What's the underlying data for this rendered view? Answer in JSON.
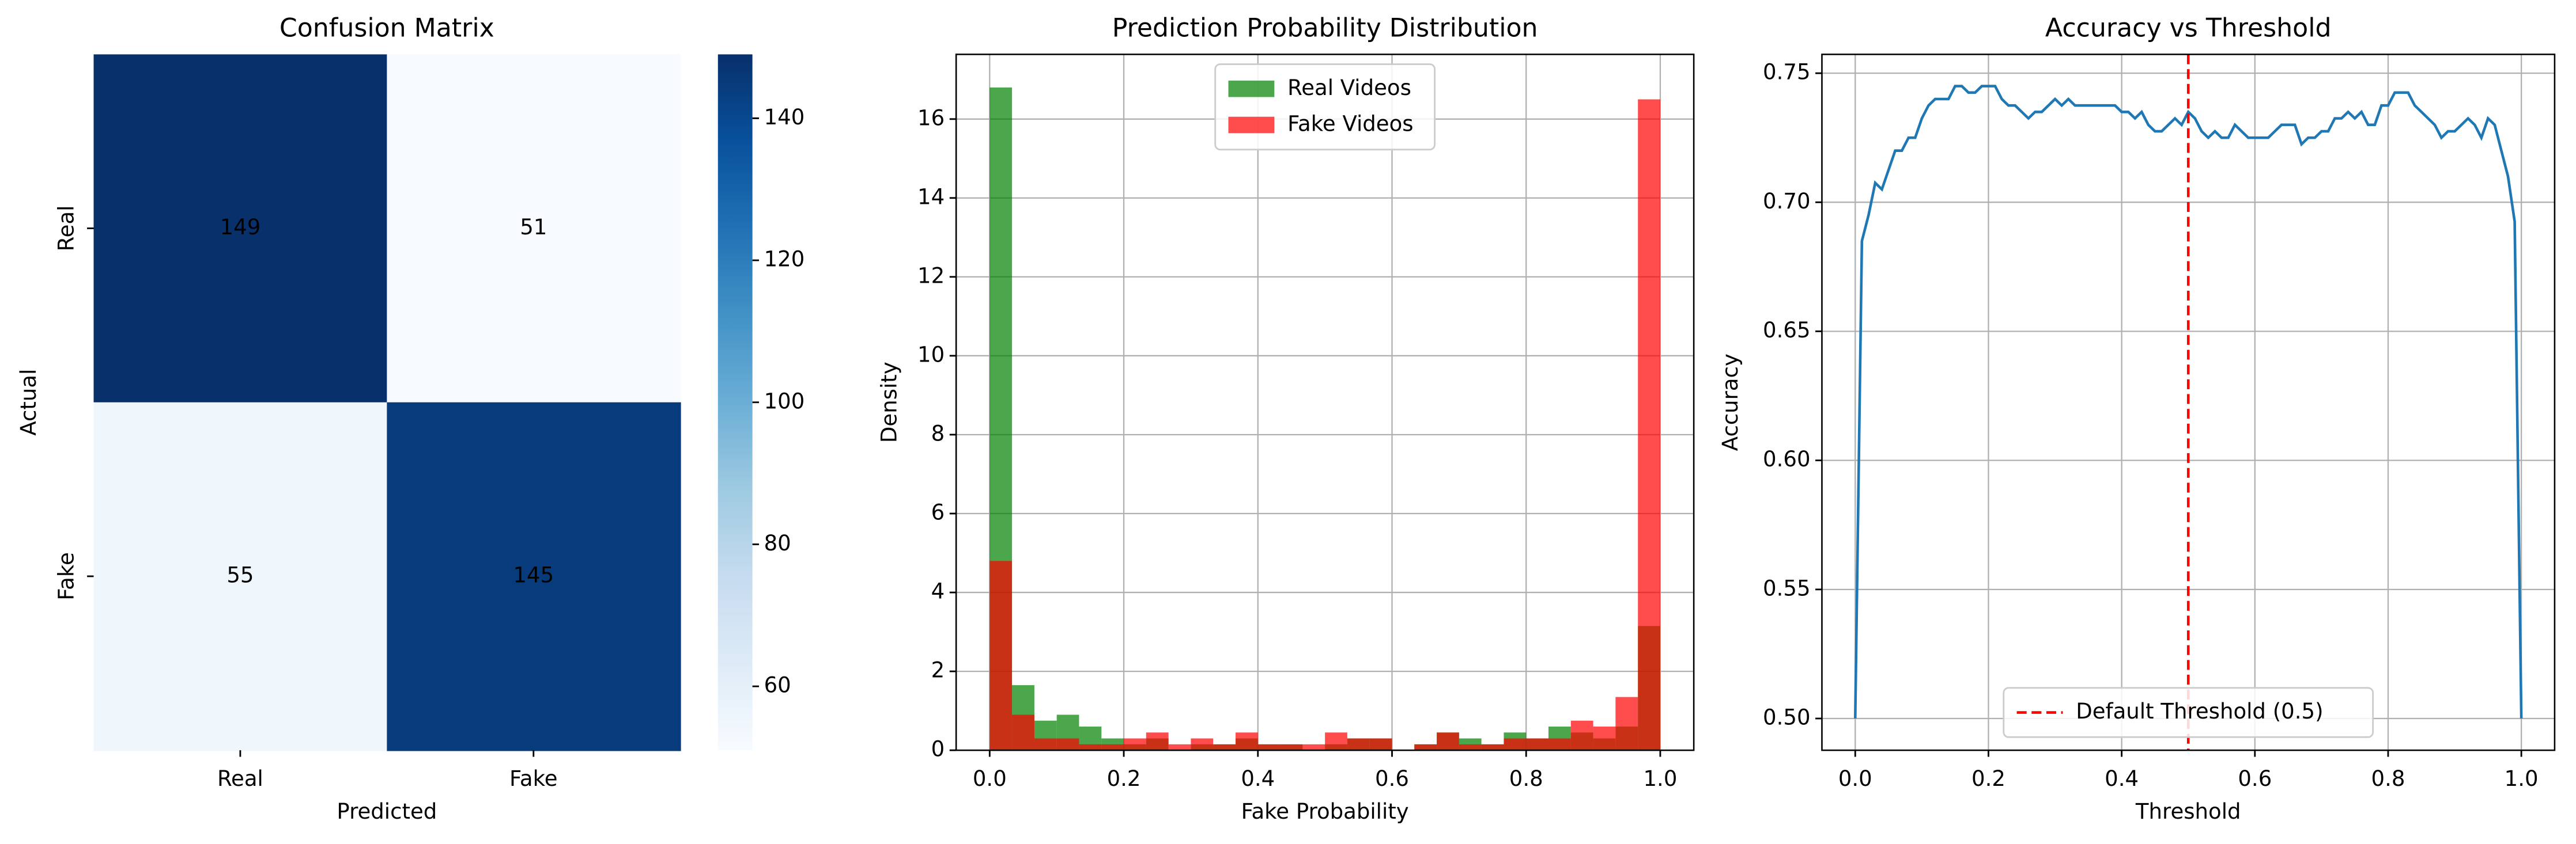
{
  "chart_data": [
    {
      "type": "heatmap",
      "title": "Confusion Matrix",
      "xlabel": "Predicted",
      "ylabel": "Actual",
      "x_categories": [
        "Real",
        "Fake"
      ],
      "y_categories": [
        "Real",
        "Fake"
      ],
      "values": [
        [
          149,
          51
        ],
        [
          55,
          145
        ]
      ],
      "colormap": "Blues",
      "clim": [
        51,
        149
      ],
      "cticks": [
        60,
        80,
        100,
        120,
        140
      ]
    },
    {
      "type": "histogram",
      "title": "Prediction Probability Distribution",
      "xlabel": "Fake Probability",
      "ylabel": "Density",
      "bins": [
        0,
        0.0333,
        0.0667,
        0.1,
        0.1333,
        0.1667,
        0.2,
        0.2333,
        0.2667,
        0.3,
        0.3333,
        0.3667,
        0.4,
        0.4333,
        0.4667,
        0.5,
        0.5333,
        0.5667,
        0.6,
        0.6333,
        0.6667,
        0.7,
        0.7333,
        0.7667,
        0.8,
        0.8333,
        0.8667,
        0.9,
        0.9333,
        0.9667,
        1
      ],
      "series": [
        {
          "name": "Real Videos",
          "color": "#008000",
          "values": [
            16.8,
            1.65,
            0.75,
            0.9,
            0.6,
            0.3,
            0.15,
            0.3,
            0,
            0.15,
            0.15,
            0.3,
            0.15,
            0.15,
            0,
            0.15,
            0.3,
            0.3,
            0,
            0.15,
            0.45,
            0.3,
            0.15,
            0.45,
            0.3,
            0.6,
            0.45,
            0.3,
            0.6,
            3.15
          ]
        },
        {
          "name": "Fake Videos",
          "color": "#ff0000",
          "values": [
            4.8,
            0.9,
            0.3,
            0.3,
            0.15,
            0.15,
            0.3,
            0.45,
            0.15,
            0.3,
            0.15,
            0.45,
            0.15,
            0.15,
            0.15,
            0.45,
            0.3,
            0.3,
            0,
            0.15,
            0.45,
            0.15,
            0.15,
            0.3,
            0.3,
            0.3,
            0.75,
            0.6,
            1.35,
            16.5
          ]
        }
      ],
      "xlim": [
        -0.05,
        1.05
      ],
      "ylim": [
        0,
        17.64
      ],
      "xticks": [
        {
          "value": 0,
          "label": "0.0"
        },
        {
          "value": 0.2,
          "label": "0.2"
        },
        {
          "value": 0.4,
          "label": "0.4"
        },
        {
          "value": 0.6,
          "label": "0.6"
        },
        {
          "value": 0.8,
          "label": "0.8"
        },
        {
          "value": 1,
          "label": "1.0"
        }
      ],
      "yticks": [
        0,
        2,
        4,
        6,
        8,
        10,
        12,
        14,
        16
      ],
      "grid": true,
      "legend": "upper center"
    },
    {
      "type": "line",
      "title": "Accuracy vs Threshold",
      "xlabel": "Threshold",
      "ylabel": "Accuracy",
      "x": [
        0,
        0.01,
        0.02,
        0.03,
        0.04,
        0.05,
        0.06,
        0.07,
        0.08,
        0.09,
        0.1,
        0.11,
        0.12,
        0.13,
        0.14,
        0.15,
        0.16,
        0.17,
        0.18,
        0.19,
        0.2,
        0.21,
        0.22,
        0.23,
        0.24,
        0.25,
        0.26,
        0.27,
        0.28,
        0.29,
        0.3,
        0.31,
        0.32,
        0.33,
        0.34,
        0.35,
        0.36,
        0.37,
        0.38,
        0.39,
        0.4,
        0.41,
        0.42,
        0.43,
        0.44,
        0.45,
        0.46,
        0.47,
        0.48,
        0.49,
        0.5,
        0.51,
        0.52,
        0.53,
        0.54,
        0.55,
        0.56,
        0.57,
        0.58,
        0.59,
        0.6,
        0.61,
        0.62,
        0.63,
        0.64,
        0.65,
        0.66,
        0.67,
        0.68,
        0.69,
        0.7,
        0.71,
        0.72,
        0.73,
        0.74,
        0.75,
        0.76,
        0.77,
        0.78,
        0.79,
        0.8,
        0.81,
        0.82,
        0.83,
        0.84,
        0.85,
        0.86,
        0.87,
        0.88,
        0.89,
        0.9,
        0.91,
        0.92,
        0.93,
        0.94,
        0.95,
        0.96,
        0.97,
        0.98,
        0.99,
        1
      ],
      "series": [
        {
          "color": "#1f77b4",
          "values": [
            0.5,
            0.685,
            0.695,
            0.7075,
            0.705,
            0.7125,
            0.72,
            0.72,
            0.725,
            0.725,
            0.7325,
            0.7375,
            0.74,
            0.74,
            0.74,
            0.745,
            0.745,
            0.7425,
            0.7425,
            0.745,
            0.745,
            0.745,
            0.74,
            0.7375,
            0.7375,
            0.735,
            0.7325,
            0.735,
            0.735,
            0.7375,
            0.74,
            0.7375,
            0.74,
            0.7375,
            0.7375,
            0.7375,
            0.7375,
            0.7375,
            0.7375,
            0.7375,
            0.735,
            0.735,
            0.7325,
            0.735,
            0.73,
            0.7275,
            0.7275,
            0.73,
            0.7325,
            0.73,
            0.735,
            0.7325,
            0.7275,
            0.725,
            0.7275,
            0.725,
            0.725,
            0.73,
            0.7275,
            0.725,
            0.725,
            0.725,
            0.725,
            0.7275,
            0.73,
            0.73,
            0.73,
            0.7225,
            0.725,
            0.725,
            0.7275,
            0.7275,
            0.7325,
            0.7325,
            0.735,
            0.7325,
            0.735,
            0.73,
            0.73,
            0.7375,
            0.7375,
            0.7425,
            0.7425,
            0.7425,
            0.7375,
            0.735,
            0.7325,
            0.73,
            0.725,
            0.7275,
            0.7275,
            0.73,
            0.7325,
            0.73,
            0.725,
            0.7325,
            0.73,
            0.72,
            0.71,
            0.6925,
            0.5
          ]
        }
      ],
      "vline": {
        "x": 0.5,
        "name": "Default Threshold (0.5)",
        "color": "#ff0000"
      },
      "xlim": [
        -0.05,
        1.05
      ],
      "ylim": [
        0.4877,
        0.7573
      ],
      "xticks": [
        {
          "value": 0,
          "label": "0.0"
        },
        {
          "value": 0.2,
          "label": "0.2"
        },
        {
          "value": 0.4,
          "label": "0.4"
        },
        {
          "value": 0.6,
          "label": "0.6"
        },
        {
          "value": 0.8,
          "label": "0.8"
        },
        {
          "value": 1,
          "label": "1.0"
        }
      ],
      "yticks": [
        {
          "value": 0.5,
          "label": "0.50"
        },
        {
          "value": 0.55,
          "label": "0.55"
        },
        {
          "value": 0.6,
          "label": "0.60"
        },
        {
          "value": 0.65,
          "label": "0.65"
        },
        {
          "value": 0.7,
          "label": "0.70"
        },
        {
          "value": 0.75,
          "label": "0.75"
        }
      ],
      "grid": true,
      "legend": "lower center"
    }
  ]
}
